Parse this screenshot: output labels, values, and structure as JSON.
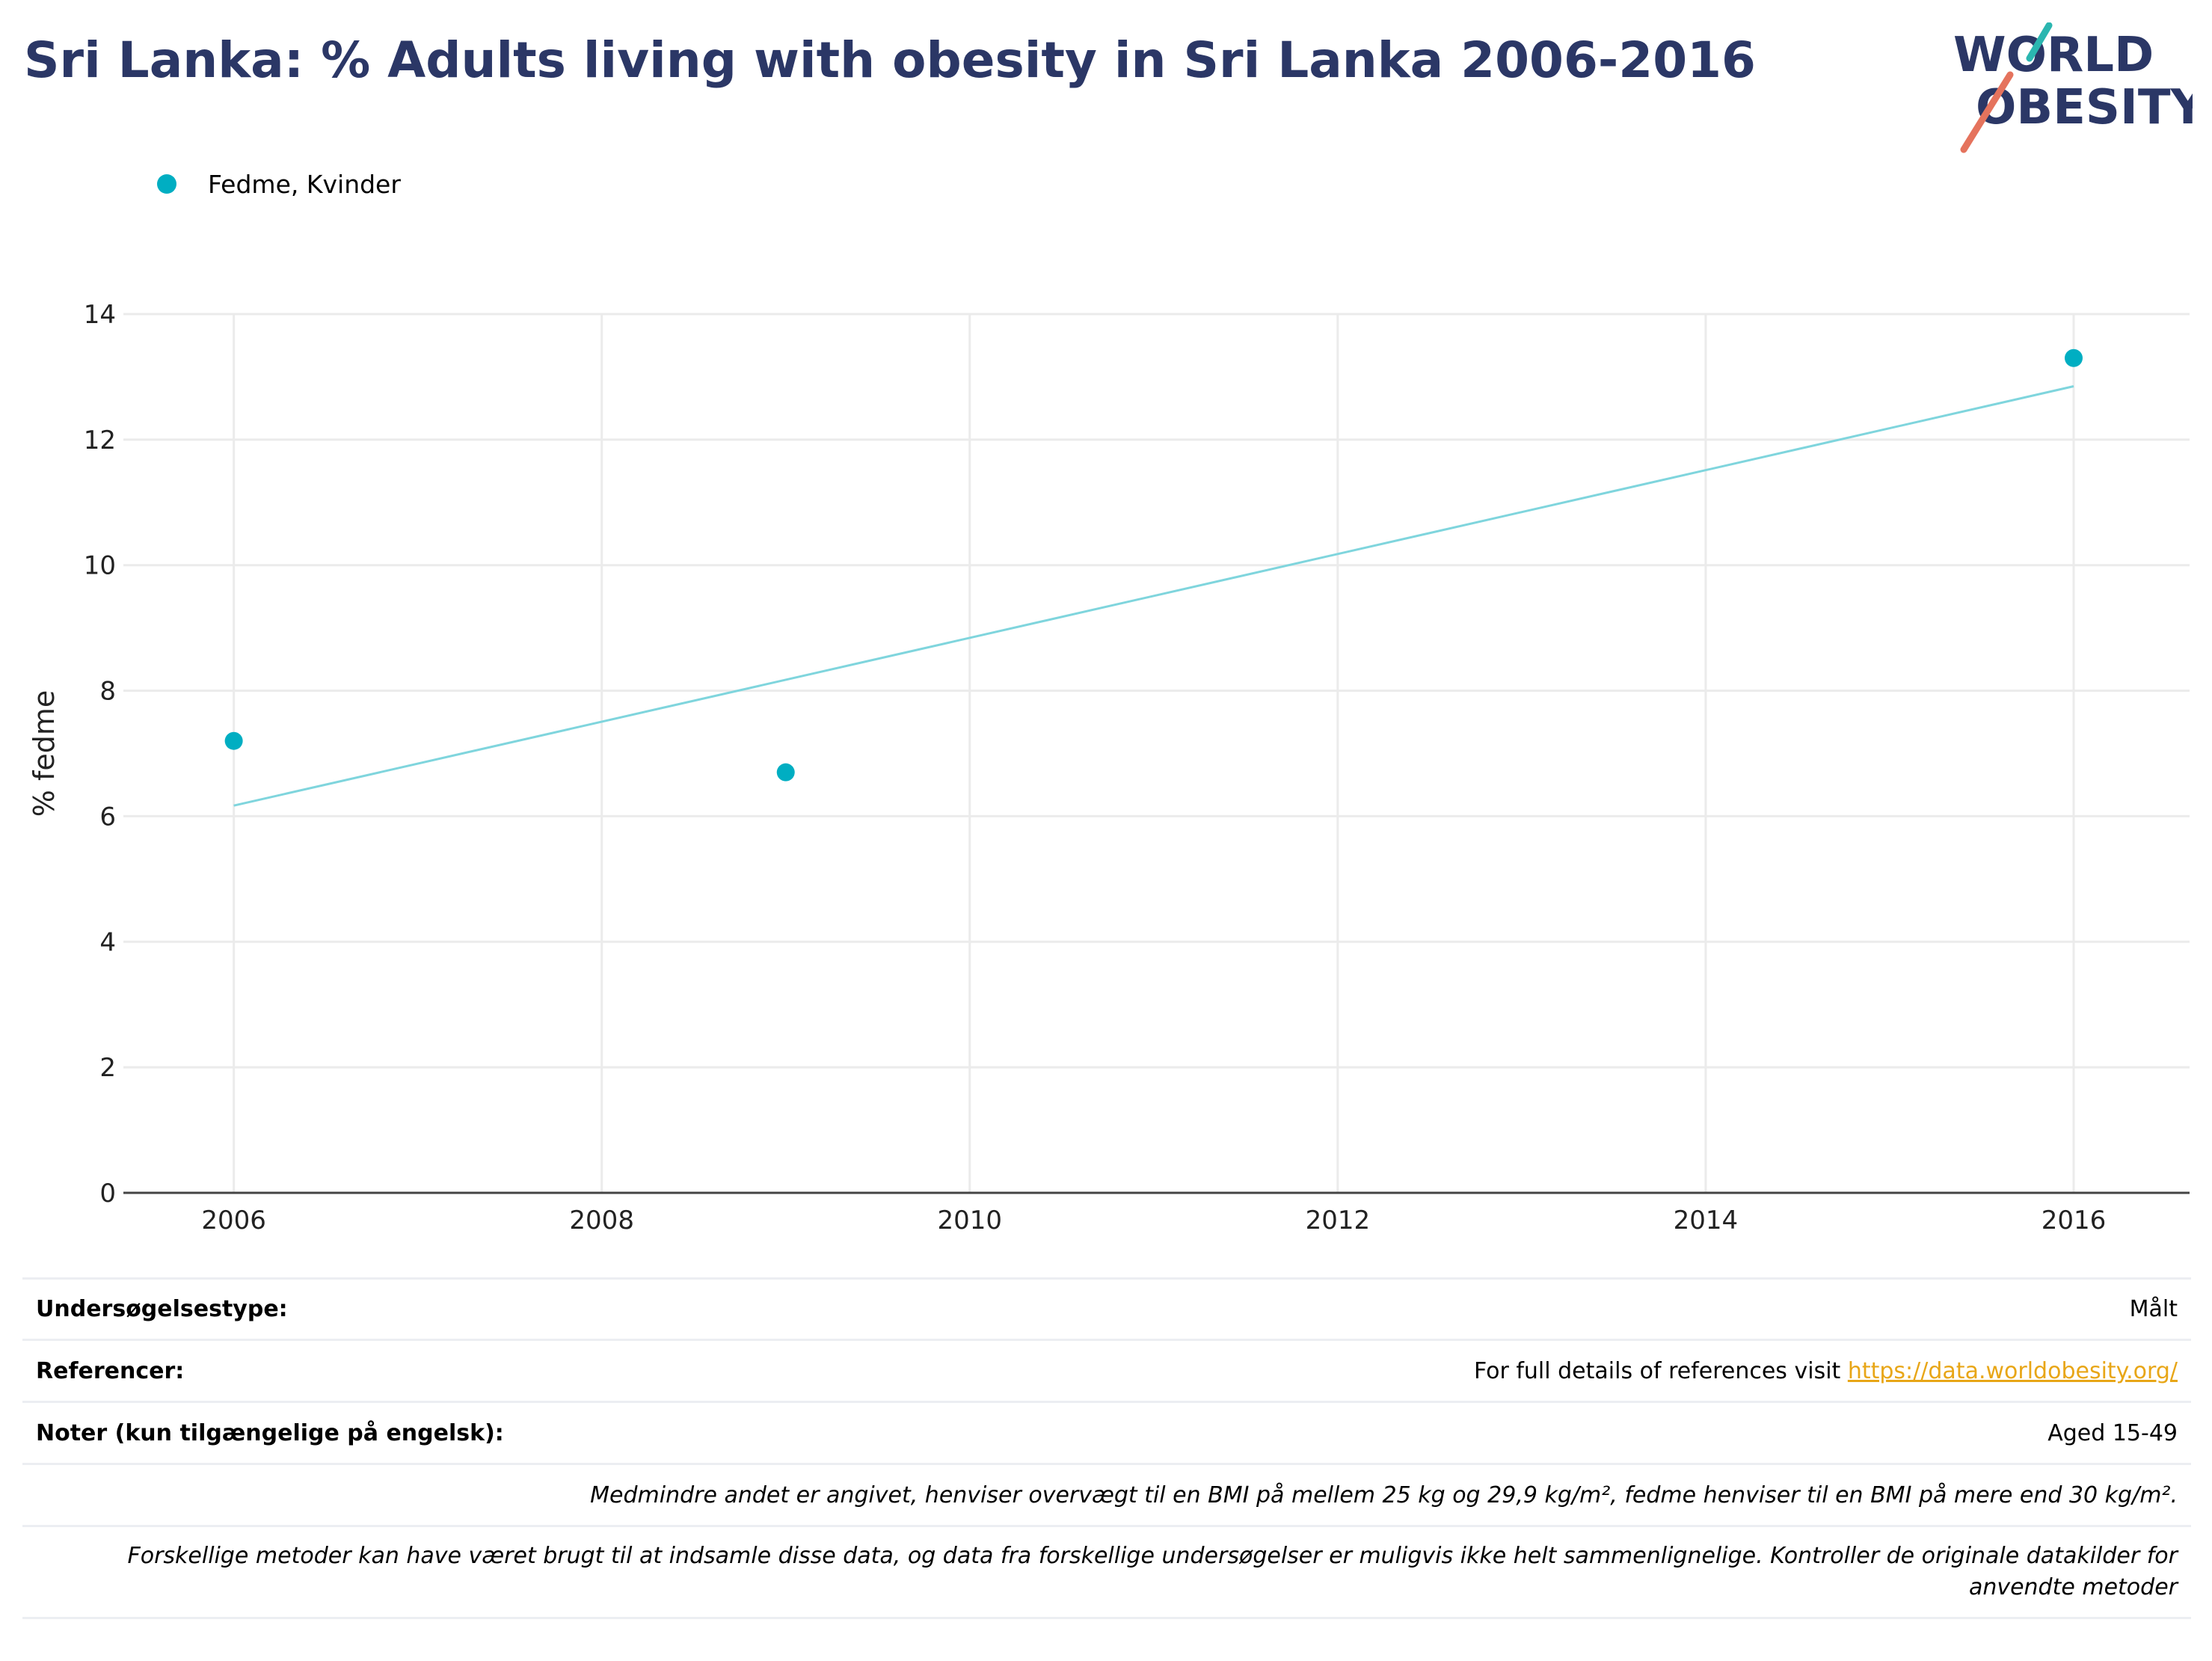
{
  "title": "Sri Lanka: % Adults living with obesity in Sri Lanka 2006-2016",
  "logo": {
    "line1": "WORLD",
    "line2": "OBESITY",
    "text_color": "#2b3766",
    "slash_colors": [
      "#2bb6b0",
      "#e5735d"
    ]
  },
  "legend": {
    "label": "Fedme, Kvinder",
    "color": "#00aec2"
  },
  "chart_data": {
    "type": "scatter",
    "title": "",
    "xlabel": "",
    "ylabel": "% fedme",
    "x_ticks": [
      2006,
      2008,
      2010,
      2012,
      2014,
      2016
    ],
    "y_ticks": [
      0,
      2,
      4,
      6,
      8,
      10,
      12,
      14
    ],
    "xlim": [
      2005.4,
      2016.63
    ],
    "ylim": [
      0,
      14
    ],
    "grid": true,
    "legend_position": "top-left",
    "series": [
      {
        "name": "Fedme, Kvinder",
        "color": "#00aec2",
        "points": [
          {
            "x": 2006,
            "y": 7.2
          },
          {
            "x": 2009,
            "y": 6.7
          },
          {
            "x": 2016,
            "y": 13.3
          }
        ]
      }
    ],
    "trendline": {
      "color": "#7fd5dd",
      "x": [
        2006,
        2016
      ],
      "y": [
        6.17,
        12.85
      ]
    }
  },
  "notes": {
    "survey_type_label": "Undersøgelsestype:",
    "survey_type_value": "Målt",
    "references_label": "Referencer:",
    "references_text": "For full details of references visit ",
    "references_link": "https://data.worldobesity.org/",
    "notes_label": "Noter (kun tilgængelige på engelsk):",
    "notes_value": "Aged 15-49",
    "bmi_note": "Medmindre andet er angivet, henviser overvægt til en BMI på mellem 25 kg og 29,9 kg/m², fedme henviser til en BMI på mere end 30 kg/m².",
    "methods_note": "Forskellige metoder kan have været brugt til at indsamle disse data, og data fra forskellige undersøgelser er muligvis ikke helt sammenlignelige. Kontroller de originale datakilder for anvendte metoder"
  }
}
